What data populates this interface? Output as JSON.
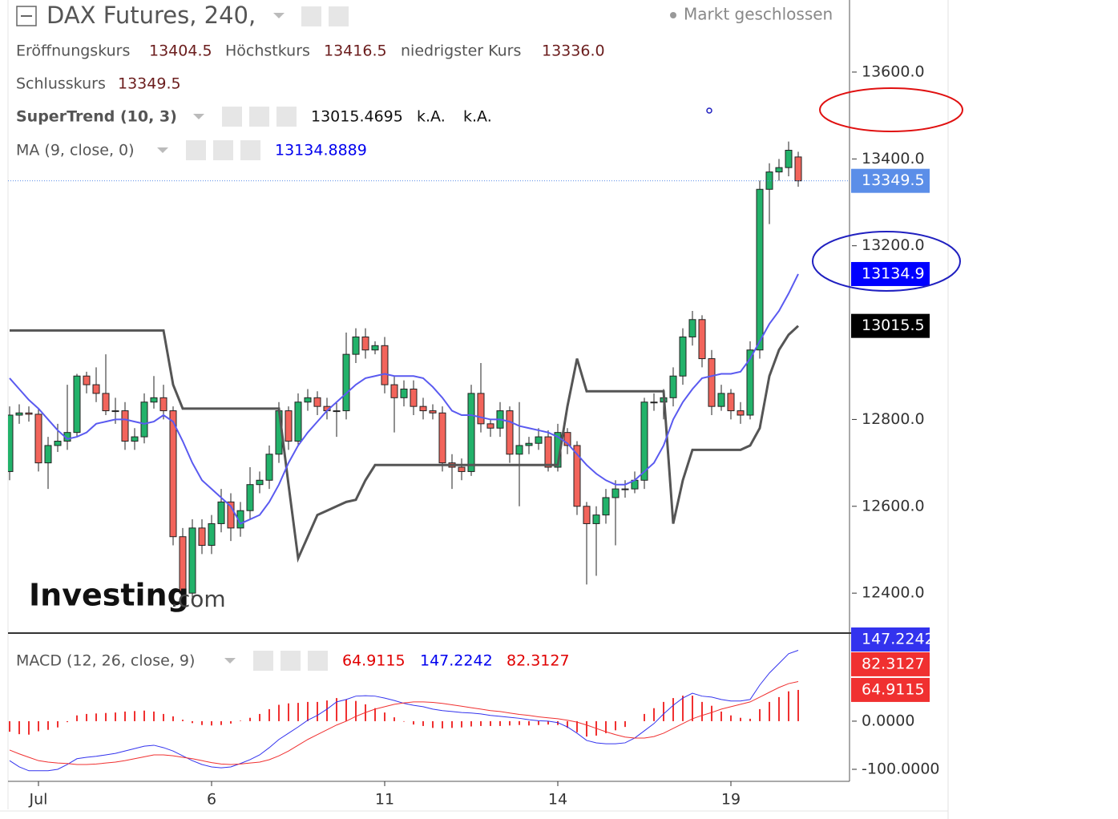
{
  "chart_data": {
    "type": "candlestick",
    "title": "DAX Futures, 240,",
    "status": "Markt geschlossen",
    "ohlc_labels": [
      "Eröffnungskurs",
      "Höchstkurs",
      "niedrigster Kurs",
      "Schlusskurs"
    ],
    "watermark": [
      "Investing",
      ".com"
    ],
    "categories": [
      null,
      null,
      null,
      "Jul",
      null,
      null,
      null,
      null,
      null,
      null,
      null,
      null,
      null,
      null,
      null,
      null,
      null,
      null,
      null,
      null,
      null,
      "6",
      null,
      null,
      null,
      null,
      null,
      null,
      null,
      null,
      null,
      null,
      null,
      null,
      null,
      null,
      null,
      null,
      null,
      "11",
      null,
      null,
      null,
      null,
      null,
      null,
      null,
      null,
      null,
      null,
      null,
      null,
      null,
      null,
      null,
      null,
      null,
      "14",
      null,
      null,
      null,
      null,
      null,
      null,
      null,
      null,
      null,
      null,
      null,
      null,
      null,
      null,
      null,
      null,
      null,
      "19",
      null,
      null,
      null,
      null,
      null,
      null,
      null
    ],
    "ylim": [
      12308,
      13766
    ],
    "yticks": [
      {
        "value": 12400,
        "label": "12400.0"
      },
      {
        "value": 12600,
        "label": "12600.0"
      },
      {
        "value": 12800,
        "label": "12800.0"
      },
      {
        "value": 13000,
        "label": "13000.0"
      },
      {
        "value": 13200,
        "label": "13200.0"
      },
      {
        "value": 13400,
        "label": "13400.0"
      },
      {
        "value": 13600,
        "label": "13600.0"
      }
    ],
    "candles": {
      "up_color": "#22b26a",
      "down_color": "#f2645b",
      "last_color": "#5b8ee8",
      "last_labels": [
        "13404.5",
        "13416.5",
        "13336.0",
        "13349.5"
      ],
      "values": [
        [
          12680,
          12830,
          12660,
          12810
        ],
        [
          12810,
          12835,
          12790,
          12815
        ],
        [
          12815,
          12830,
          12795,
          12812
        ],
        [
          12812,
          12825,
          12680,
          12700
        ],
        [
          12700,
          12760,
          12640,
          12740
        ],
        [
          12740,
          12790,
          12725,
          12750
        ],
        [
          12750,
          12880,
          12730,
          12770
        ],
        [
          12770,
          12905,
          12760,
          12900
        ],
        [
          12900,
          12910,
          12860,
          12880
        ],
        [
          12880,
          12920,
          12840,
          12860
        ],
        [
          12860,
          12950,
          12810,
          12820
        ],
        [
          12820,
          12850,
          12790,
          12820
        ],
        [
          12820,
          12840,
          12730,
          12750
        ],
        [
          12750,
          12780,
          12730,
          12760
        ],
        [
          12760,
          12860,
          12745,
          12840
        ],
        [
          12840,
          12900,
          12825,
          12850
        ],
        [
          12850,
          12880,
          12800,
          12820
        ],
        [
          12820,
          12830,
          12510,
          12530
        ],
        [
          12530,
          12550,
          12380,
          12400
        ],
        [
          12400,
          12570,
          12380,
          12550
        ],
        [
          12550,
          12570,
          12490,
          12510
        ],
        [
          12510,
          12580,
          12490,
          12560
        ],
        [
          12560,
          12640,
          12540,
          12610
        ],
        [
          12610,
          12630,
          12520,
          12550
        ],
        [
          12550,
          12610,
          12530,
          12590
        ],
        [
          12590,
          12690,
          12570,
          12650
        ],
        [
          12650,
          12680,
          12630,
          12660
        ],
        [
          12660,
          12740,
          12640,
          12720
        ],
        [
          12720,
          12840,
          12700,
          12820
        ],
        [
          12820,
          12830,
          12730,
          12750
        ],
        [
          12750,
          12860,
          12740,
          12840
        ],
        [
          12840,
          12870,
          12820,
          12850
        ],
        [
          12850,
          12865,
          12810,
          12830
        ],
        [
          12830,
          12850,
          12800,
          12820
        ],
        [
          12820,
          12840,
          12760,
          12820
        ],
        [
          12820,
          13000,
          12800,
          12950
        ],
        [
          12950,
          13010,
          12930,
          12990
        ],
        [
          12990,
          13010,
          12940,
          12960
        ],
        [
          12960,
          12980,
          12950,
          12970
        ],
        [
          12970,
          12990,
          12860,
          12880
        ],
        [
          12880,
          12900,
          12770,
          12850
        ],
        [
          12850,
          12890,
          12830,
          12870
        ],
        [
          12870,
          12890,
          12810,
          12830
        ],
        [
          12830,
          12850,
          12800,
          12820
        ],
        [
          12820,
          12835,
          12800,
          12815
        ],
        [
          12815,
          12830,
          12680,
          12700
        ],
        [
          12700,
          12720,
          12640,
          12690
        ],
        [
          12690,
          12710,
          12660,
          12680
        ],
        [
          12680,
          12880,
          12670,
          12860
        ],
        [
          12860,
          12930,
          12770,
          12790
        ],
        [
          12790,
          12800,
          12760,
          12780
        ],
        [
          12780,
          12840,
          12760,
          12820
        ],
        [
          12820,
          12830,
          12700,
          12720
        ],
        [
          12720,
          12840,
          12600,
          12740
        ],
        [
          12740,
          12760,
          12720,
          12745
        ],
        [
          12745,
          12780,
          12730,
          12760
        ],
        [
          12760,
          12775,
          12680,
          12690
        ],
        [
          12690,
          12790,
          12680,
          12770
        ],
        [
          12770,
          12780,
          12720,
          12740
        ],
        [
          12740,
          12750,
          12580,
          12600
        ],
        [
          12600,
          12610,
          12420,
          12560
        ],
        [
          12560,
          12600,
          12440,
          12580
        ],
        [
          12580,
          12640,
          12560,
          12620
        ],
        [
          12620,
          12660,
          12510,
          12640
        ],
        [
          12640,
          12660,
          12620,
          12640
        ],
        [
          12640,
          12680,
          12630,
          12660
        ],
        [
          12660,
          12850,
          12640,
          12840
        ],
        [
          12840,
          12860,
          12820,
          12840
        ],
        [
          12840,
          12870,
          12800,
          12850
        ],
        [
          12850,
          12920,
          12830,
          12900
        ],
        [
          12900,
          13010,
          12880,
          12990
        ],
        [
          12990,
          13050,
          12970,
          13030
        ],
        [
          13030,
          13040,
          12920,
          12940
        ],
        [
          12940,
          12960,
          12810,
          12830
        ],
        [
          12830,
          12880,
          12820,
          12860
        ],
        [
          12860,
          12870,
          12800,
          12820
        ],
        [
          12820,
          12840,
          12790,
          12810
        ],
        [
          12810,
          12980,
          12800,
          12960
        ],
        [
          12960,
          13350,
          12940,
          13330
        ],
        [
          13330,
          13390,
          13250,
          13370
        ],
        [
          13370,
          13400,
          13350,
          13380
        ],
        [
          13380,
          13440,
          13360,
          13420
        ],
        [
          13404.5,
          13416.5,
          13336,
          13349.5
        ]
      ]
    },
    "series": [
      {
        "name": "SuperTrend (10, 3)",
        "color": "#555555",
        "badge_color": "#000000",
        "last_label": "13015.5",
        "extra": [
          "k.A.",
          "k.A."
        ],
        "values": [
          13005,
          13005,
          13005,
          13005,
          13005,
          13005,
          13005,
          13005,
          13005,
          13005,
          13005,
          13005,
          13005,
          13005,
          13005,
          13005,
          13005,
          12880,
          12825,
          12825,
          12825,
          12825,
          12825,
          12825,
          12825,
          12825,
          12825,
          12825,
          12825,
          12650,
          12480,
          12530,
          12580,
          12590,
          12600,
          12610,
          12615,
          12660,
          12695,
          12695,
          12695,
          12695,
          12695,
          12695,
          12695,
          12695,
          12695,
          12695,
          12695,
          12695,
          12695,
          12695,
          12695,
          12695,
          12695,
          12695,
          12695,
          12695,
          12830,
          12940,
          12865,
          12865,
          12865,
          12865,
          12865,
          12865,
          12865,
          12865,
          12865,
          12560,
          12660,
          12730,
          12730,
          12730,
          12730,
          12730,
          12730,
          12740,
          12780,
          12900,
          12960,
          12995,
          13015.4695
        ]
      },
      {
        "name": "MA (9, close, 0)",
        "color": "#5a5af0",
        "badge_color": "#0000ff",
        "last_label": "13134.9",
        "values": [
          12895,
          12870,
          12845,
          12825,
          12800,
          12775,
          12755,
          12760,
          12770,
          12790,
          12795,
          12800,
          12800,
          12795,
          12790,
          12795,
          12810,
          12795,
          12750,
          12700,
          12660,
          12640,
          12620,
          12600,
          12560,
          12570,
          12580,
          12610,
          12650,
          12700,
          12740,
          12770,
          12795,
          12820,
          12840,
          12860,
          12880,
          12895,
          12900,
          12905,
          12900,
          12900,
          12900,
          12895,
          12875,
          12850,
          12820,
          12810,
          12810,
          12805,
          12800,
          12800,
          12795,
          12785,
          12780,
          12775,
          12770,
          12760,
          12745,
          12720,
          12695,
          12675,
          12660,
          12650,
          12650,
          12660,
          12680,
          12700,
          12740,
          12800,
          12840,
          12870,
          12895,
          12900,
          12905,
          12905,
          12910,
          12940,
          12980,
          13020,
          13050,
          13090,
          13134.8889
        ]
      }
    ],
    "macd": {
      "name": "MACD (12, 26, close, 9)",
      "ylim": [
        -125,
        183
      ],
      "yticks": [
        {
          "value": -100,
          "label": "-100.0000"
        },
        {
          "value": 0,
          "label": "0.0000"
        }
      ],
      "histogram": {
        "color": "#f03030",
        "values": [
          -22,
          -27,
          -28,
          -21,
          -18,
          -13,
          -2,
          12,
          15,
          16,
          17,
          18,
          20,
          21,
          22,
          20,
          15,
          10,
          3,
          -4,
          -8,
          -9,
          -8,
          -5,
          1,
          7,
          15,
          25,
          34,
          37,
          38,
          40,
          40,
          43,
          48,
          45,
          42,
          35,
          27,
          18,
          8,
          -1,
          -7,
          -10,
          -14,
          -15,
          -14,
          -13,
          -11,
          -10,
          -10,
          -10,
          -9,
          -8,
          -9,
          -8,
          -7,
          -8,
          -14,
          -23,
          -32,
          -30,
          -25,
          -19,
          -12,
          0,
          15,
          27,
          40,
          48,
          53,
          53,
          40,
          32,
          20,
          12,
          7,
          5,
          25,
          40,
          50,
          62,
          64.9115
        ]
      },
      "macd": {
        "color": "#3333ee",
        "values": [
          -82,
          -95,
          -103,
          -103,
          -103,
          -100,
          -90,
          -78,
          -75,
          -73,
          -70,
          -67,
          -62,
          -57,
          -52,
          -50,
          -55,
          -62,
          -72,
          -82,
          -90,
          -95,
          -97,
          -95,
          -88,
          -80,
          -70,
          -55,
          -38,
          -25,
          -12,
          2,
          12,
          25,
          40,
          45,
          52,
          53,
          52,
          48,
          43,
          37,
          33,
          30,
          25,
          22,
          20,
          18,
          17,
          15,
          12,
          10,
          8,
          6,
          3,
          1,
          0,
          -3,
          -12,
          -25,
          -40,
          -45,
          -47,
          -47,
          -45,
          -35,
          -20,
          -5,
          15,
          33,
          48,
          58,
          52,
          50,
          45,
          42,
          42,
          45,
          75,
          100,
          120,
          140,
          147.2242
        ]
      },
      "signal": {
        "color": "#f03030",
        "values": [
          -60,
          -68,
          -75,
          -82,
          -85,
          -87,
          -88,
          -90,
          -90,
          -89,
          -87,
          -85,
          -82,
          -78,
          -74,
          -70,
          -70,
          -72,
          -75,
          -78,
          -82,
          -86,
          -89,
          -90,
          -89,
          -87,
          -85,
          -80,
          -72,
          -62,
          -50,
          -38,
          -28,
          -18,
          -8,
          0,
          10,
          18,
          25,
          30,
          35,
          38,
          40,
          40,
          39,
          37,
          34,
          31,
          28,
          25,
          22,
          20,
          17,
          14,
          12,
          9,
          7,
          5,
          2,
          -2,
          -8,
          -15,
          -22,
          -28,
          -33,
          -35,
          -35,
          -32,
          -25,
          -15,
          -5,
          5,
          12,
          18,
          25,
          30,
          35,
          40,
          50,
          60,
          70,
          78,
          82.3127
        ]
      }
    }
  }
}
